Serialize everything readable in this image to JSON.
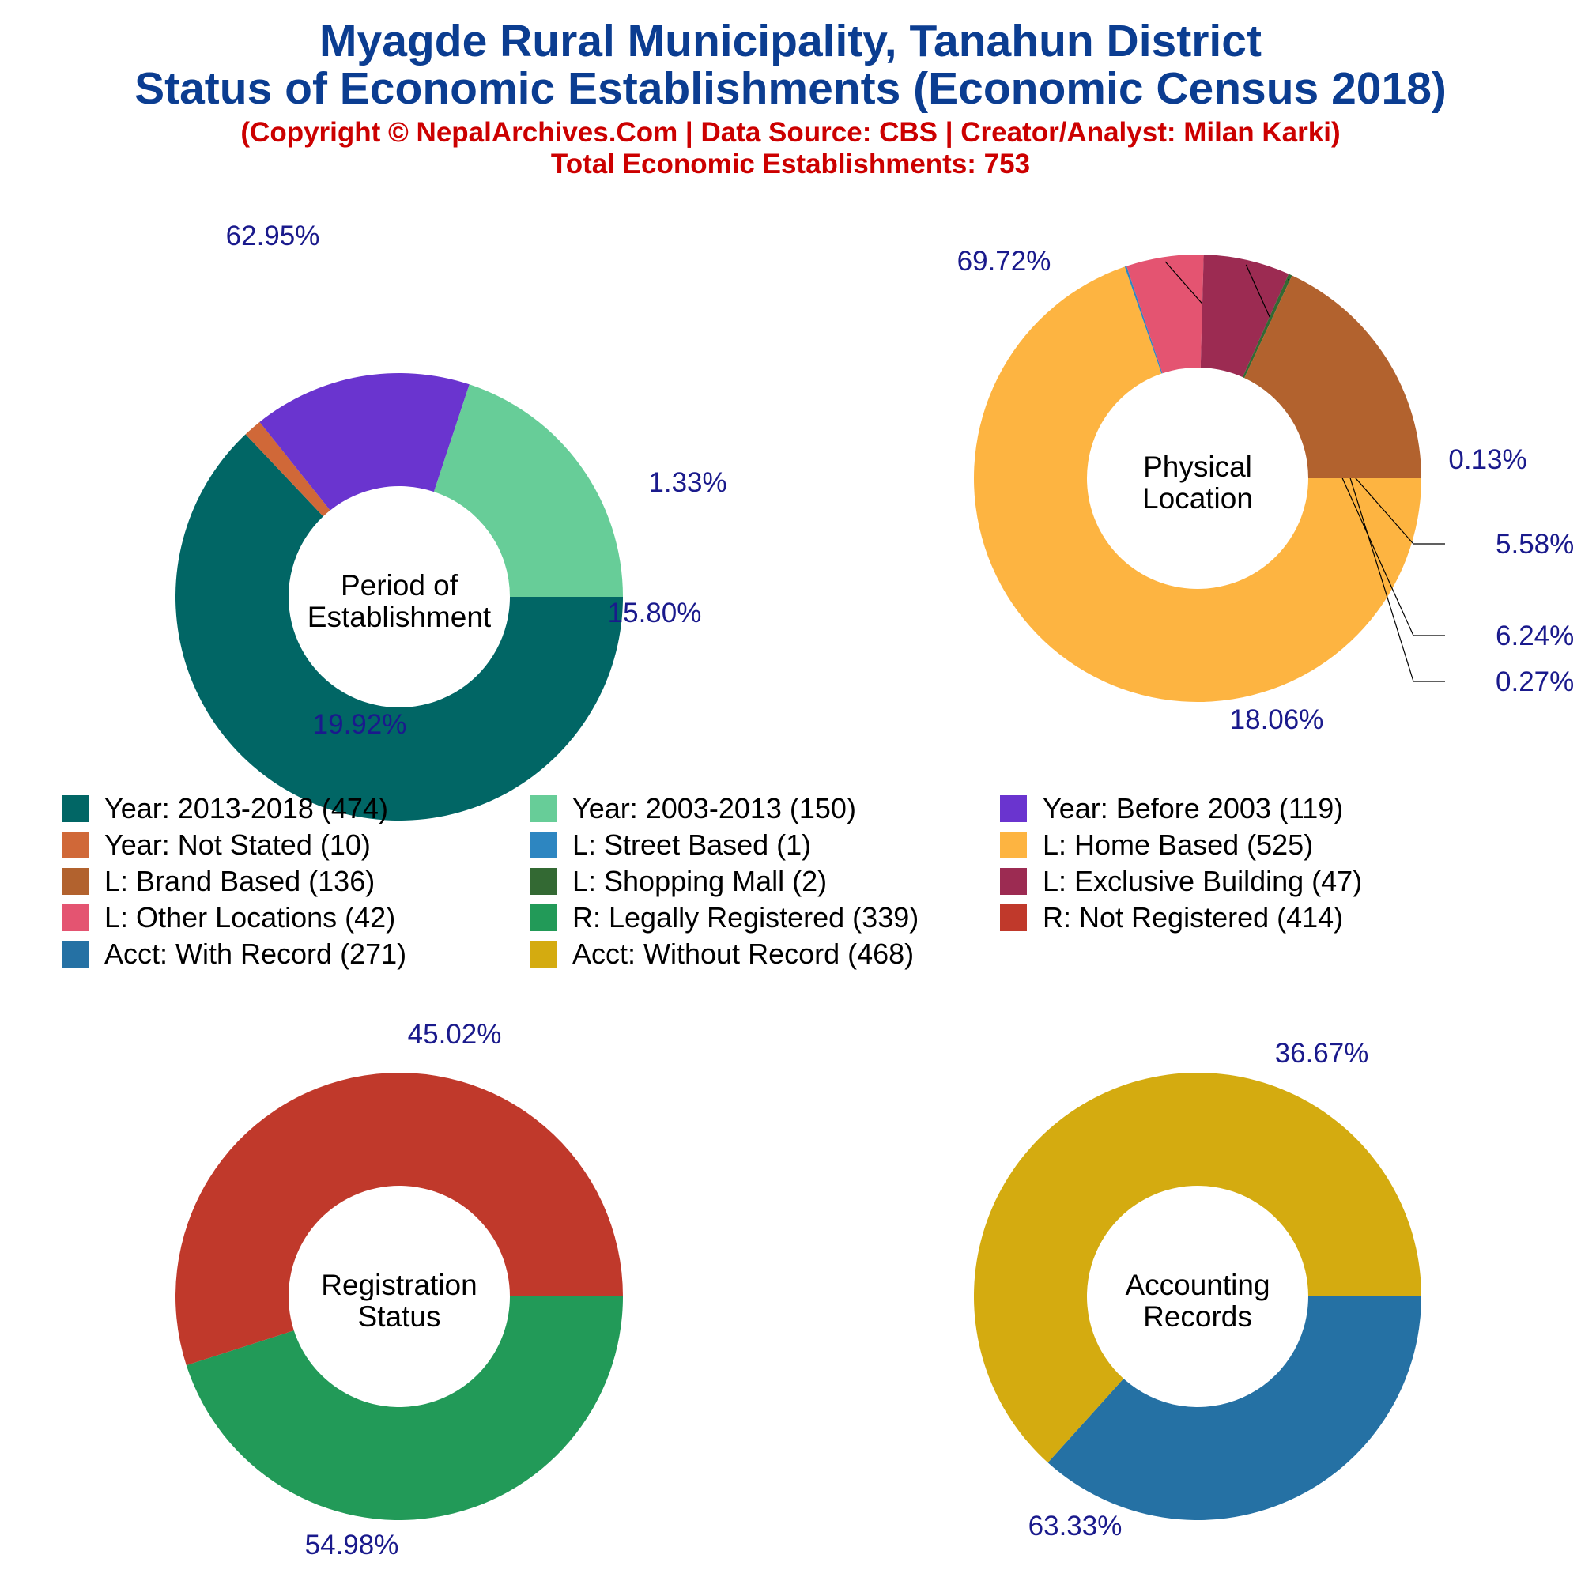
{
  "header": {
    "title_line1": "Myagde Rural Municipality, Tanahun District",
    "title_line2": "Status of Economic Establishments (Economic Census 2018)",
    "copyright": "(Copyright © NepalArchives.Com | Data Source: CBS | Creator/Analyst: Milan Karki)",
    "total": "Total Economic Establishments: 753"
  },
  "colors": {
    "title": "#0b3d91",
    "subtitle": "#cc0000",
    "pct_label": "#1a1a8c"
  },
  "legend": [
    {
      "label": "Year: 2013-2018 (474)",
      "color": "#016665"
    },
    {
      "label": "Year: 2003-2013 (150)",
      "color": "#67cd98"
    },
    {
      "label": "Year: Before 2003 (119)",
      "color": "#6a34cf"
    },
    {
      "label": "Year: Not Stated (10)",
      "color": "#d06838"
    },
    {
      "label": "L: Street Based (1)",
      "color": "#2d86c1"
    },
    {
      "label": "L: Home Based (525)",
      "color": "#fdb441"
    },
    {
      "label": "L: Brand Based (136)",
      "color": "#b2622e"
    },
    {
      "label": "L: Shopping Mall (2)",
      "color": "#336933"
    },
    {
      "label": "L: Exclusive Building (47)",
      "color": "#9c2b52"
    },
    {
      "label": "L: Other Locations (42)",
      "color": "#e45471"
    },
    {
      "label": "R: Legally Registered (339)",
      "color": "#229a58"
    },
    {
      "label": "R: Not Registered (414)",
      "color": "#c0392b"
    },
    {
      "label": "Acct: With Record (271)",
      "color": "#2571a4"
    },
    {
      "label": "Acct: Without Record (468)",
      "color": "#d4ab10"
    }
  ],
  "chart_data": [
    {
      "type": "pie",
      "title": "Period of Establishment",
      "categories": [
        "Year: 2013-2018",
        "Year: Not Stated",
        "Year: Before 2003",
        "Year: 2003-2013"
      ],
      "values": [
        474,
        10,
        119,
        150
      ],
      "percent_labels": [
        "62.95%",
        "1.33%",
        "15.80%",
        "19.92%"
      ],
      "colors": [
        "#016665",
        "#d06838",
        "#6a34cf",
        "#67cd98"
      ]
    },
    {
      "type": "pie",
      "title": "Physical Location",
      "categories": [
        "L: Home Based",
        "L: Street Based",
        "L: Other Locations",
        "L: Exclusive Building",
        "L: Shopping Mall",
        "L: Brand Based"
      ],
      "values": [
        525,
        1,
        42,
        47,
        2,
        136
      ],
      "percent_labels": [
        "69.72%",
        "0.13%",
        "5.58%",
        "6.24%",
        "0.27%",
        "18.06%"
      ],
      "colors": [
        "#fdb441",
        "#2d86c1",
        "#e45471",
        "#9c2b52",
        "#336933",
        "#b2622e"
      ]
    },
    {
      "type": "pie",
      "title": "Registration Status",
      "categories": [
        "R: Legally Registered",
        "R: Not Registered"
      ],
      "values": [
        339,
        414
      ],
      "percent_labels": [
        "45.02%",
        "54.98%"
      ],
      "colors": [
        "#229a58",
        "#c0392b"
      ]
    },
    {
      "type": "pie",
      "title": "Accounting Records",
      "categories": [
        "Acct: With Record",
        "Acct: Without Record"
      ],
      "values": [
        271,
        468
      ],
      "percent_labels": [
        "36.67%",
        "63.33%"
      ],
      "colors": [
        "#2571a4",
        "#d4ab10"
      ]
    }
  ]
}
